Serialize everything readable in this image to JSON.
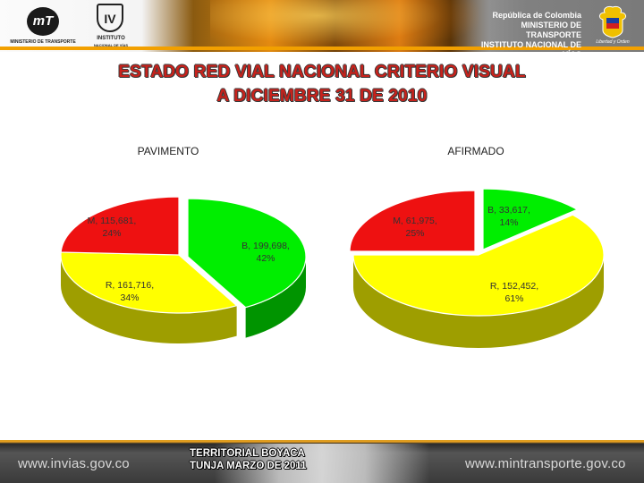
{
  "header": {
    "logo_left_caption": "MINISTERIO DE TRANSPORTE",
    "logo_left_initials": "mT",
    "logo_mid_caption_1": "INSTITUTO",
    "logo_mid_caption_2": "NACIONAL DE VÍAS",
    "logo_mid_initials": "IV",
    "gov_line1": "República de Colombia",
    "gov_line2": "MINISTERIO DE TRANSPORTE",
    "gov_line3": "INSTITUTO NACIONAL DE VÍAS",
    "crest_caption": "Libertad y Orden"
  },
  "title_line1": "ESTADO RED VIAL NACIONAL CRITERIO VISUAL",
  "title_line2": "A DICIEMBRE 31 DE 2010",
  "colors": {
    "B": "#00ee00",
    "R": "#ffff00",
    "M": "#ee1111"
  },
  "chart_data": [
    {
      "type": "pie",
      "title": "PAVIMENTO",
      "slices": [
        {
          "name": "B",
          "value": 199698,
          "percent": 42,
          "label": "B, 199,698,",
          "pct_label": "42%"
        },
        {
          "name": "R",
          "value": 161716,
          "percent": 34,
          "label": "R, 161,716,",
          "pct_label": "34%"
        },
        {
          "name": "M",
          "value": 115681,
          "percent": 24,
          "label": "M, 115,681,",
          "pct_label": "24%"
        }
      ]
    },
    {
      "type": "pie",
      "title": "AFIRMADO",
      "slices": [
        {
          "name": "B",
          "value": 33617,
          "percent": 14,
          "label": "B, 33,617,",
          "pct_label": "14%"
        },
        {
          "name": "R",
          "value": 152452,
          "percent": 61,
          "label": "R, 152,452,",
          "pct_label": "61%"
        },
        {
          "name": "M",
          "value": 61975,
          "percent": 25,
          "label": "M, 61,975,",
          "pct_label": "25%"
        }
      ]
    }
  ],
  "footer": {
    "url_left": "www.invias.gov.co",
    "url_right": "www.mintransporte.gov.co",
    "territorial_line1": "TERRITORIAL BOYACA",
    "territorial_line2": "TUNJA MARZO DE 2011"
  }
}
